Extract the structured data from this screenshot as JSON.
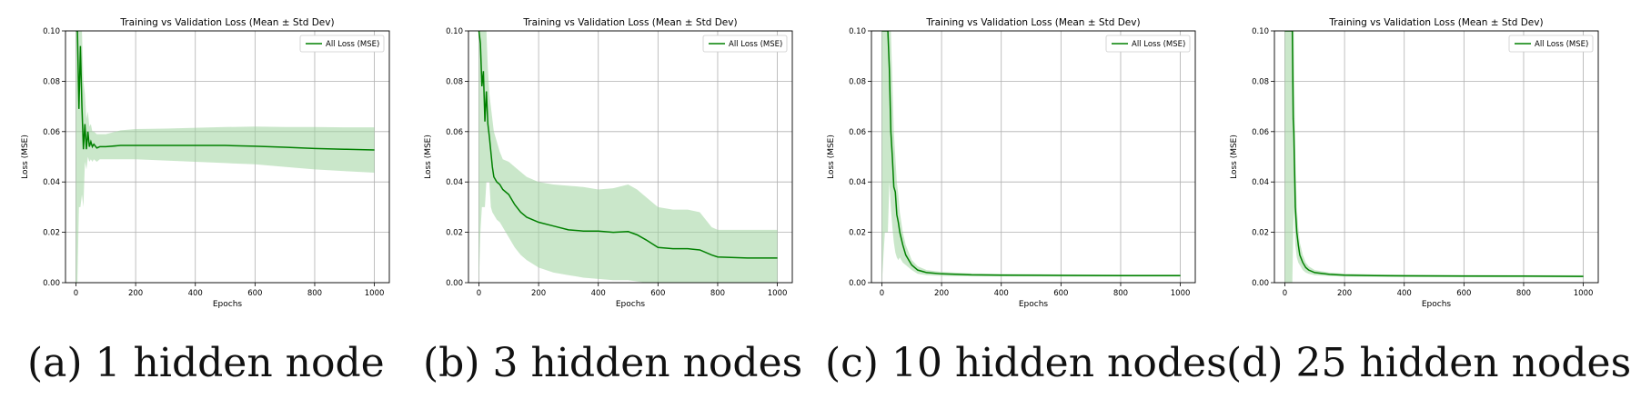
{
  "colors": {
    "line": "#008000",
    "band": "#9fd39f",
    "grid": "#b0b0b0",
    "axis": "#000000"
  },
  "chart_data": [
    {
      "type": "line",
      "title": "Training vs Validation Loss (Mean ± Std Dev)",
      "xlabel": "Epochs",
      "ylabel": "Loss (MSE)",
      "xlim": [
        -35,
        1050
      ],
      "ylim": [
        0,
        0.1
      ],
      "xticks": [
        "0",
        "200",
        "400",
        "600",
        "800",
        "1000"
      ],
      "yticks": [
        "0.00",
        "0.02",
        "0.04",
        "0.06",
        "0.08",
        "0.10"
      ],
      "grid": true,
      "legend_position": "top-right",
      "caption": "(a) 1 hidden node",
      "series": [
        {
          "name": "All Loss (MSE)",
          "x": [
            0,
            5,
            10,
            15,
            20,
            25,
            30,
            35,
            40,
            45,
            50,
            55,
            60,
            70,
            80,
            90,
            100,
            150,
            200,
            300,
            400,
            500,
            600,
            700,
            800,
            900,
            1000
          ],
          "y": [
            0.1,
            0.1,
            0.069,
            0.094,
            0.07,
            0.053,
            0.063,
            0.053,
            0.06,
            0.054,
            0.056,
            0.054,
            0.055,
            0.0535,
            0.054,
            0.054,
            0.054,
            0.0545,
            0.0545,
            0.0545,
            0.0545,
            0.0545,
            0.0542,
            0.0538,
            0.0533,
            0.053,
            0.0527
          ],
          "upper": [
            0.1,
            0.1,
            0.1,
            0.1,
            0.1,
            0.08,
            0.075,
            0.065,
            0.068,
            0.062,
            0.063,
            0.06,
            0.06,
            0.059,
            0.059,
            0.059,
            0.059,
            0.0605,
            0.061,
            0.0612,
            0.0615,
            0.0618,
            0.062,
            0.0618,
            0.0618,
            0.0617,
            0.0617
          ],
          "lower": [
            0.0,
            0.0,
            0.03,
            0.03,
            0.035,
            0.03,
            0.048,
            0.045,
            0.05,
            0.048,
            0.049,
            0.048,
            0.049,
            0.048,
            0.049,
            0.049,
            0.049,
            0.049,
            0.049,
            0.0485,
            0.048,
            0.0475,
            0.047,
            0.046,
            0.045,
            0.0443,
            0.0437
          ]
        }
      ]
    },
    {
      "type": "line",
      "title": "Training vs Validation Loss (Mean ± Std Dev)",
      "xlabel": "Epochs",
      "ylabel": "Loss (MSE)",
      "xlim": [
        -35,
        1050
      ],
      "ylim": [
        0,
        0.1
      ],
      "xticks": [
        "0",
        "200",
        "400",
        "600",
        "800",
        "1000"
      ],
      "yticks": [
        "0.00",
        "0.02",
        "0.04",
        "0.06",
        "0.08",
        "0.10"
      ],
      "grid": true,
      "legend_position": "top-right",
      "caption": "(b) 3 hidden nodes",
      "series": [
        {
          "name": "All Loss (MSE)",
          "x": [
            0,
            5,
            10,
            15,
            20,
            25,
            30,
            35,
            40,
            45,
            50,
            60,
            70,
            80,
            100,
            120,
            140,
            160,
            200,
            250,
            300,
            350,
            400,
            450,
            500,
            530,
            560,
            600,
            650,
            700,
            740,
            780,
            800,
            900,
            1000
          ],
          "y": [
            0.1,
            0.095,
            0.078,
            0.084,
            0.064,
            0.076,
            0.063,
            0.058,
            0.052,
            0.046,
            0.042,
            0.04,
            0.039,
            0.037,
            0.035,
            0.031,
            0.028,
            0.026,
            0.024,
            0.0225,
            0.021,
            0.0205,
            0.0205,
            0.02,
            0.0203,
            0.019,
            0.017,
            0.014,
            0.0135,
            0.0135,
            0.013,
            0.011,
            0.0102,
            0.0098,
            0.0098
          ],
          "upper": [
            0.1,
            0.1,
            0.1,
            0.1,
            0.1,
            0.1,
            0.085,
            0.075,
            0.07,
            0.065,
            0.06,
            0.056,
            0.052,
            0.049,
            0.048,
            0.046,
            0.044,
            0.042,
            0.04,
            0.039,
            0.0385,
            0.038,
            0.037,
            0.0375,
            0.039,
            0.037,
            0.034,
            0.03,
            0.029,
            0.029,
            0.028,
            0.022,
            0.021,
            0.021,
            0.021
          ],
          "lower": [
            0.0,
            0.02,
            0.03,
            0.03,
            0.03,
            0.04,
            0.04,
            0.04,
            0.03,
            0.028,
            0.027,
            0.025,
            0.024,
            0.022,
            0.018,
            0.014,
            0.011,
            0.009,
            0.006,
            0.004,
            0.003,
            0.002,
            0.0015,
            0.001,
            0.001,
            0.0005,
            0.0,
            0.0,
            0.0,
            0.0,
            0.0,
            0.0,
            0.0,
            0.0,
            0.0
          ]
        }
      ]
    },
    {
      "type": "line",
      "title": "Training vs Validation Loss (Mean ± Std Dev)",
      "xlabel": "Epochs",
      "ylabel": "Loss (MSE)",
      "xlim": [
        -35,
        1050
      ],
      "ylim": [
        0,
        0.1
      ],
      "xticks": [
        "0",
        "200",
        "400",
        "600",
        "800",
        "1000"
      ],
      "yticks": [
        "0.00",
        "0.02",
        "0.04",
        "0.06",
        "0.08",
        "0.10"
      ],
      "grid": true,
      "legend_position": "top-right",
      "caption": "(c) 10 hidden nodes",
      "series": [
        {
          "name": "All Loss (MSE)",
          "x": [
            0,
            10,
            20,
            25,
            30,
            35,
            40,
            45,
            50,
            55,
            60,
            70,
            80,
            90,
            100,
            120,
            150,
            200,
            300,
            400,
            600,
            800,
            1000
          ],
          "y": [
            0.1,
            0.1,
            0.1,
            0.085,
            0.06,
            0.05,
            0.038,
            0.036,
            0.027,
            0.024,
            0.02,
            0.015,
            0.011,
            0.009,
            0.007,
            0.005,
            0.004,
            0.0035,
            0.0031,
            0.003,
            0.0029,
            0.0028,
            0.0028
          ],
          "upper": [
            0.1,
            0.1,
            0.1,
            0.1,
            0.1,
            0.08,
            0.06,
            0.05,
            0.04,
            0.035,
            0.028,
            0.02,
            0.015,
            0.012,
            0.009,
            0.0065,
            0.005,
            0.0043,
            0.0037,
            0.0035,
            0.0033,
            0.0032,
            0.0032
          ],
          "lower": [
            0.0,
            0.02,
            0.02,
            0.04,
            0.03,
            0.022,
            0.016,
            0.012,
            0.01,
            0.009,
            0.01,
            0.008,
            0.007,
            0.006,
            0.005,
            0.0035,
            0.003,
            0.0027,
            0.0025,
            0.0025,
            0.0024,
            0.0024,
            0.0024
          ]
        }
      ]
    },
    {
      "type": "line",
      "title": "Training vs Validation Loss (Mean ± Std Dev)",
      "xlabel": "Epochs",
      "ylabel": "Loss (MSE)",
      "xlim": [
        -35,
        1050
      ],
      "ylim": [
        0,
        0.1
      ],
      "xticks": [
        "0",
        "200",
        "400",
        "600",
        "800",
        "1000"
      ],
      "yticks": [
        "0.00",
        "0.02",
        "0.04",
        "0.06",
        "0.08",
        "0.10"
      ],
      "grid": true,
      "legend_position": "top-right",
      "caption": "(d) 25 hidden nodes",
      "series": [
        {
          "name": "All Loss (MSE)",
          "x": [
            0,
            10,
            15,
            18,
            20,
            22,
            25,
            28,
            30,
            35,
            40,
            45,
            50,
            60,
            70,
            80,
            100,
            150,
            200,
            300,
            400,
            600,
            800,
            1000
          ],
          "y": [
            0.1,
            0.1,
            0.1,
            0.1,
            0.1,
            0.1,
            0.1,
            0.065,
            0.06,
            0.03,
            0.02,
            0.015,
            0.011,
            0.008,
            0.006,
            0.005,
            0.004,
            0.0033,
            0.003,
            0.0028,
            0.0027,
            0.0026,
            0.0026,
            0.0025
          ],
          "upper": [
            0.1,
            0.1,
            0.1,
            0.1,
            0.1,
            0.1,
            0.1,
            0.1,
            0.1,
            0.05,
            0.03,
            0.022,
            0.016,
            0.011,
            0.008,
            0.0065,
            0.005,
            0.004,
            0.0036,
            0.0033,
            0.0032,
            0.0031,
            0.003,
            0.003
          ],
          "lower": [
            0.0,
            0.0,
            0.0,
            0.0,
            0.0,
            0.0,
            0.0,
            0.02,
            0.03,
            0.015,
            0.01,
            0.008,
            0.007,
            0.005,
            0.004,
            0.0035,
            0.003,
            0.0026,
            0.0024,
            0.0023,
            0.0022,
            0.0022,
            0.0021,
            0.0021
          ]
        }
      ]
    }
  ]
}
